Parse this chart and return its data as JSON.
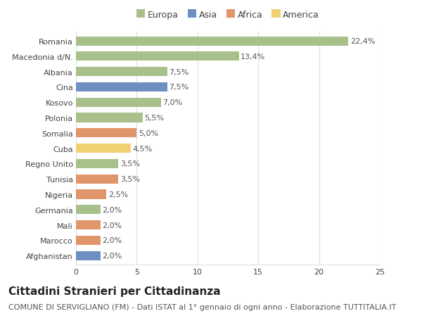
{
  "countries": [
    "Romania",
    "Macedonia d/N.",
    "Albania",
    "Cina",
    "Kosovo",
    "Polonia",
    "Somalia",
    "Cuba",
    "Regno Unito",
    "Tunisia",
    "Nigeria",
    "Germania",
    "Mali",
    "Marocco",
    "Afghanistan"
  ],
  "values": [
    22.4,
    13.4,
    7.5,
    7.5,
    7.0,
    5.5,
    5.0,
    4.5,
    3.5,
    3.5,
    2.5,
    2.0,
    2.0,
    2.0,
    2.0
  ],
  "labels": [
    "22,4%",
    "13,4%",
    "7,5%",
    "7,5%",
    "7,0%",
    "5,5%",
    "5,0%",
    "4,5%",
    "3,5%",
    "3,5%",
    "2,5%",
    "2,0%",
    "2,0%",
    "2,0%",
    "2,0%"
  ],
  "continents": [
    "Europa",
    "Europa",
    "Europa",
    "Asia",
    "Europa",
    "Europa",
    "Africa",
    "America",
    "Europa",
    "Africa",
    "Africa",
    "Europa",
    "Africa",
    "Africa",
    "Asia"
  ],
  "continent_colors": {
    "Europa": "#a8c08a",
    "Asia": "#6d8fc2",
    "Africa": "#e0956a",
    "America": "#f0d070"
  },
  "legend_order": [
    "Europa",
    "Asia",
    "Africa",
    "America"
  ],
  "bg_color": "#ffffff",
  "grid_color": "#e0e0e0",
  "title": "Cittadini Stranieri per Cittadinanza",
  "subtitle": "COMUNE DI SERVIGLIANO (FM) - Dati ISTAT al 1° gennaio di ogni anno - Elaborazione TUTTITALIA.IT",
  "xlim": [
    0,
    25
  ],
  "xticks": [
    0,
    5,
    10,
    15,
    20,
    25
  ],
  "title_fontsize": 11,
  "subtitle_fontsize": 8,
  "label_fontsize": 8,
  "tick_fontsize": 8,
  "legend_fontsize": 9,
  "bar_height": 0.6
}
